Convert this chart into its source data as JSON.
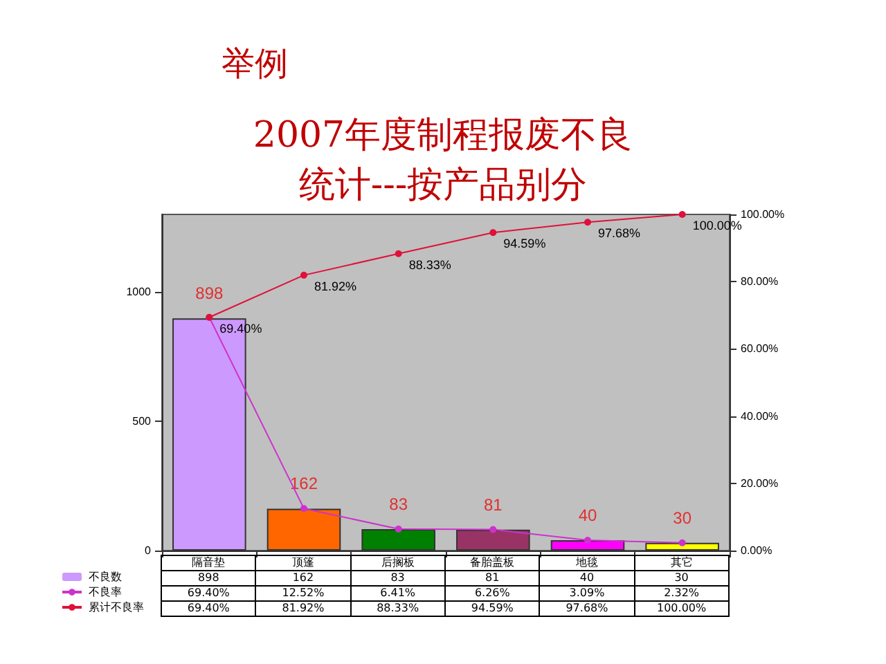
{
  "chart_data": {
    "type": "bar",
    "title": "举例",
    "subtitle": "2007年度制程报废不良统计---按产品别分",
    "categories": [
      "隔音垫",
      "顶篷",
      "后搁板",
      "备胎盖板",
      "地毯",
      "其它"
    ],
    "series": [
      {
        "name": "不良数",
        "colors": [
          "#cc99ff",
          "#ff6600",
          "#008000",
          "#993366",
          "#ff00ff",
          "#ffff00"
        ],
        "values": [
          898,
          162,
          83,
          81,
          40,
          30
        ],
        "value_labels": [
          "898",
          "162",
          "83",
          "81",
          "40",
          "30"
        ]
      },
      {
        "name": "不良率",
        "type": "line",
        "axis": "y2",
        "color": "#cc33cc",
        "values": [
          69.4,
          12.52,
          6.41,
          6.26,
          3.09,
          2.32
        ],
        "value_labels": [
          "69.40%",
          "12.52%",
          "6.41%",
          "6.26%",
          "3.09%",
          "2.32%"
        ]
      },
      {
        "name": "累计不良率",
        "type": "line",
        "axis": "y2",
        "color": "#e0103a",
        "values": [
          69.4,
          81.92,
          88.33,
          94.59,
          97.68,
          100.0
        ],
        "value_labels": [
          "69.40%",
          "81.92%",
          "88.33%",
          "94.59%",
          "97.68%",
          "100.00%"
        ]
      }
    ],
    "ylim": [
      0,
      1300
    ],
    "yticks": [
      0,
      500,
      1000
    ],
    "y2lim": [
      0,
      100
    ],
    "y2ticks": [
      {
        "value": 0,
        "label": "0.00%"
      },
      {
        "value": 20,
        "label": "20.00%"
      },
      {
        "value": 40,
        "label": "40.00%"
      },
      {
        "value": 60,
        "label": "60.00%"
      },
      {
        "value": 80,
        "label": "80.00%"
      },
      {
        "value": 100,
        "label": "100.00%"
      }
    ],
    "grid": false,
    "legend": "bottom",
    "marker": "circle",
    "line_style": "solid"
  }
}
